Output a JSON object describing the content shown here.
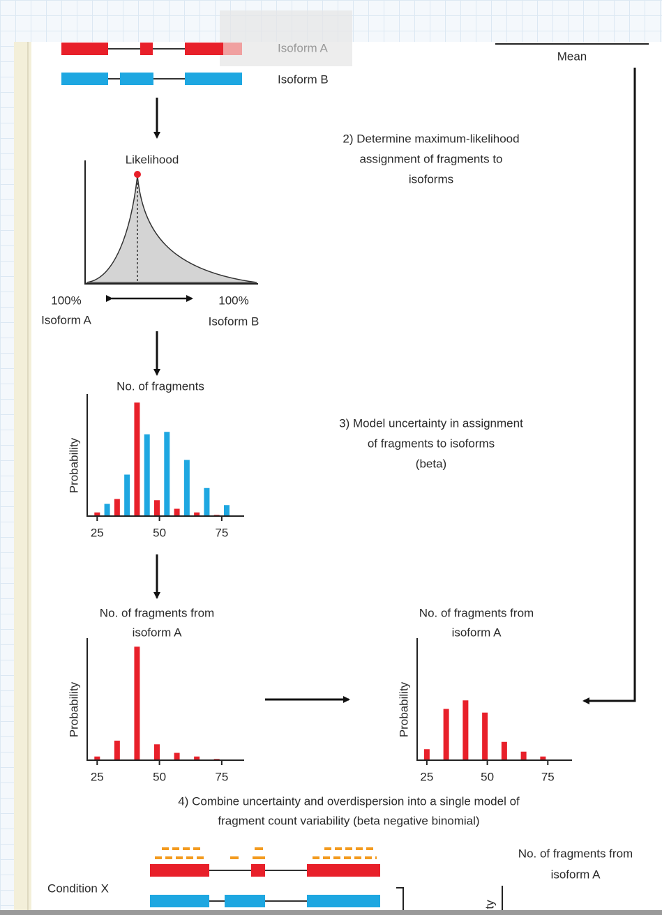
{
  "header": {
    "isoform_a": "Isoform A",
    "isoform_b": "Isoform B",
    "mean": "Mean"
  },
  "step2": [
    "2) Determine maximum-likelihood",
    "assignment of fragments to",
    "isoforms"
  ],
  "step3": [
    "3) Model uncertainty in assignment",
    "of fragments to isoforms",
    "(beta)"
  ],
  "step4": [
    "4) Combine uncertainty and overdispersion into a single model of",
    "fragment count variability (beta negative binomial)"
  ],
  "likelihood": {
    "title": "Likelihood",
    "left_label": [
      "100%",
      "Isoform A"
    ],
    "right_label": [
      "100%",
      "Isoform B"
    ]
  },
  "charts": [
    {
      "type": "bar",
      "title": [
        "No. of fragments"
      ],
      "y_label": "Probability",
      "xlim": [
        21,
        84
      ],
      "xticks": [
        25,
        50,
        75
      ],
      "ylim": [
        0,
        1
      ],
      "series": [
        {
          "color": "#e8202a",
          "x": [
            25,
            33,
            41,
            49,
            57,
            65,
            73
          ],
          "values": [
            0.03,
            0.14,
            0.93,
            0.13,
            0.06,
            0.03,
            0.01
          ]
        },
        {
          "color": "#1ea7e1",
          "x": [
            29,
            37,
            45,
            53,
            61,
            69,
            77
          ],
          "values": [
            0.1,
            0.34,
            0.67,
            0.69,
            0.46,
            0.23,
            0.09
          ]
        }
      ]
    },
    {
      "type": "bar",
      "title": [
        "No. of fragments from",
        "isoform A"
      ],
      "y_label": "Probability",
      "xlim": [
        21,
        84
      ],
      "xticks": [
        25,
        50,
        75
      ],
      "ylim": [
        0,
        1
      ],
      "series": [
        {
          "color": "#e8202a",
          "x": [
            25,
            33,
            41,
            49,
            57,
            65,
            73
          ],
          "values": [
            0.03,
            0.16,
            0.93,
            0.13,
            0.06,
            0.03,
            0.01
          ]
        }
      ]
    },
    {
      "type": "bar",
      "title": [
        "No. of fragments from",
        "isoform A"
      ],
      "y_label": "Probability",
      "xlim": [
        21,
        85
      ],
      "xticks": [
        25,
        50,
        75
      ],
      "ylim": [
        0,
        1
      ],
      "series": [
        {
          "color": "#e8202a",
          "x": [
            25,
            33,
            41,
            49,
            57,
            65,
            73
          ],
          "values": [
            0.09,
            0.42,
            0.49,
            0.39,
            0.15,
            0.07,
            0.03
          ]
        }
      ]
    }
  ],
  "bottom": {
    "condition": "Condition X",
    "chart_title": [
      "No. of fragments from",
      "isoform A"
    ],
    "y_label_partial": "ty"
  }
}
